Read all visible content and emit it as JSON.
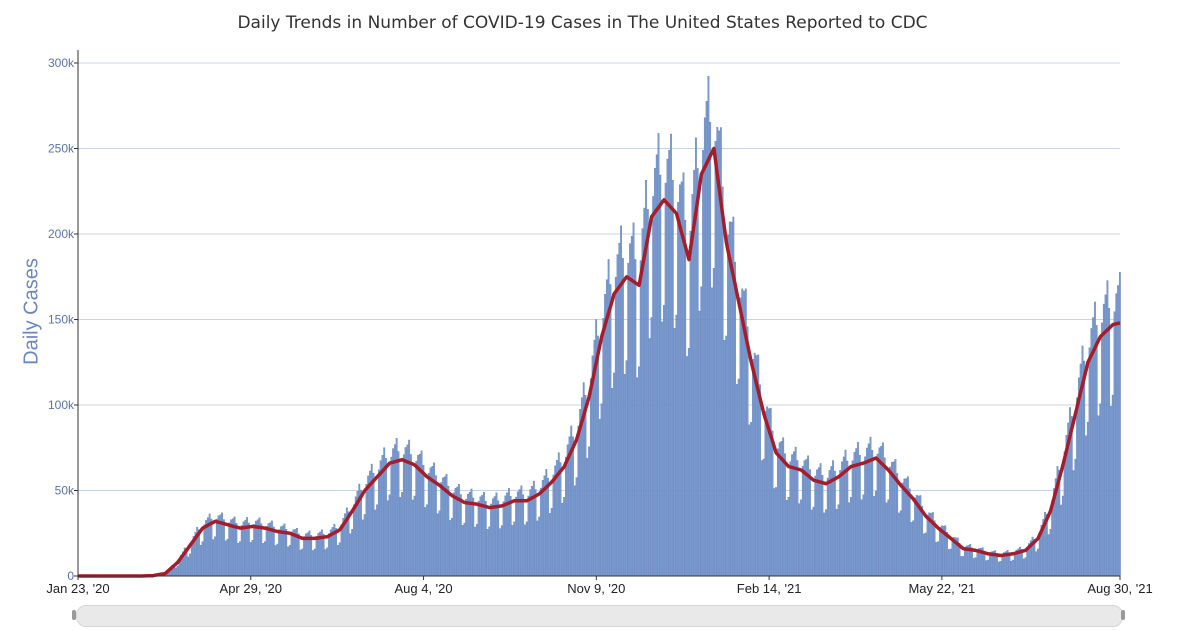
{
  "chart_data": {
    "type": "bar",
    "title": "Daily Trends in Number of COVID-19 Cases in The United States Reported to CDC",
    "ylabel": "Daily Cases",
    "xlabel": "",
    "x_range": [
      "2020-01-23",
      "2021-08-30"
    ],
    "ylim": [
      0,
      300000
    ],
    "y_ticks": [
      "0",
      "50k",
      "100k",
      "150k",
      "200k",
      "250k",
      "300k"
    ],
    "x_ticks": [
      {
        "date": "2020-01-23",
        "label": "Jan 23, '20"
      },
      {
        "date": "2020-04-29",
        "label": "Apr 29, '20"
      },
      {
        "date": "2020-08-04",
        "label": "Aug 4, '20"
      },
      {
        "date": "2020-11-09",
        "label": "Nov 9, '20"
      },
      {
        "date": "2021-02-14",
        "label": "Feb 14, '21"
      },
      {
        "date": "2021-05-22",
        "label": "May 22, '21"
      },
      {
        "date": "2021-08-30",
        "label": "Aug 30, '21"
      }
    ],
    "grid": true,
    "colors": {
      "bars": "#7b9bcf",
      "bar_edge": "#5577b5",
      "moving_average": "#a51d2a"
    },
    "series": [
      {
        "type": "line",
        "dates": [
          "2020-01-23",
          "2020-01-30",
          "2020-02-06",
          "2020-02-13",
          "2020-02-20",
          "2020-02-27",
          "2020-03-05",
          "2020-03-12",
          "2020-03-19",
          "2020-03-26",
          "2020-04-02",
          "2020-04-09",
          "2020-04-16",
          "2020-04-23",
          "2020-04-30",
          "2020-05-07",
          "2020-05-14",
          "2020-05-21",
          "2020-05-28",
          "2020-06-04",
          "2020-06-11",
          "2020-06-18",
          "2020-06-25",
          "2020-07-02",
          "2020-07-09",
          "2020-07-16",
          "2020-07-23",
          "2020-07-30",
          "2020-08-06",
          "2020-08-13",
          "2020-08-20",
          "2020-08-27",
          "2020-09-03",
          "2020-09-10",
          "2020-09-17",
          "2020-09-24",
          "2020-10-01",
          "2020-10-08",
          "2020-10-15",
          "2020-10-22",
          "2020-10-29",
          "2020-11-05",
          "2020-11-12",
          "2020-11-19",
          "2020-11-26",
          "2020-12-03",
          "2020-12-10",
          "2020-12-17",
          "2020-12-24",
          "2020-12-31",
          "2021-01-07",
          "2021-01-14",
          "2021-01-21",
          "2021-01-28",
          "2021-02-04",
          "2021-02-11",
          "2021-02-18",
          "2021-02-25",
          "2021-03-04",
          "2021-03-11",
          "2021-03-18",
          "2021-03-25",
          "2021-04-01",
          "2021-04-08",
          "2021-04-15",
          "2021-04-22",
          "2021-04-29",
          "2021-05-06",
          "2021-05-13",
          "2021-05-20",
          "2021-05-27",
          "2021-06-03",
          "2021-06-10",
          "2021-06-17",
          "2021-06-24",
          "2021-07-01",
          "2021-07-08",
          "2021-07-15",
          "2021-07-22",
          "2021-07-29",
          "2021-08-05",
          "2021-08-12",
          "2021-08-19",
          "2021-08-26",
          "2021-08-30"
        ],
        "values": [
          0,
          0,
          0,
          0,
          0,
          0,
          200,
          1500,
          8000,
          18000,
          28000,
          32000,
          30000,
          28000,
          29000,
          28000,
          26000,
          25000,
          22000,
          22000,
          23000,
          27000,
          38000,
          50000,
          58000,
          66000,
          68000,
          65000,
          58000,
          53000,
          47000,
          43000,
          42000,
          40000,
          41000,
          44000,
          44000,
          48000,
          55000,
          64000,
          80000,
          105000,
          140000,
          165000,
          175000,
          170000,
          210000,
          220000,
          212000,
          185000,
          235000,
          250000,
          195000,
          160000,
          125000,
          95000,
          72000,
          64000,
          62000,
          56000,
          54000,
          58000,
          64000,
          66000,
          69000,
          62000,
          53000,
          45000,
          35000,
          28000,
          22000,
          16000,
          15000,
          13000,
          12000,
          13000,
          15000,
          22000,
          38000,
          65000,
          95000,
          125000,
          140000,
          147000,
          148000
        ]
      }
    ]
  }
}
